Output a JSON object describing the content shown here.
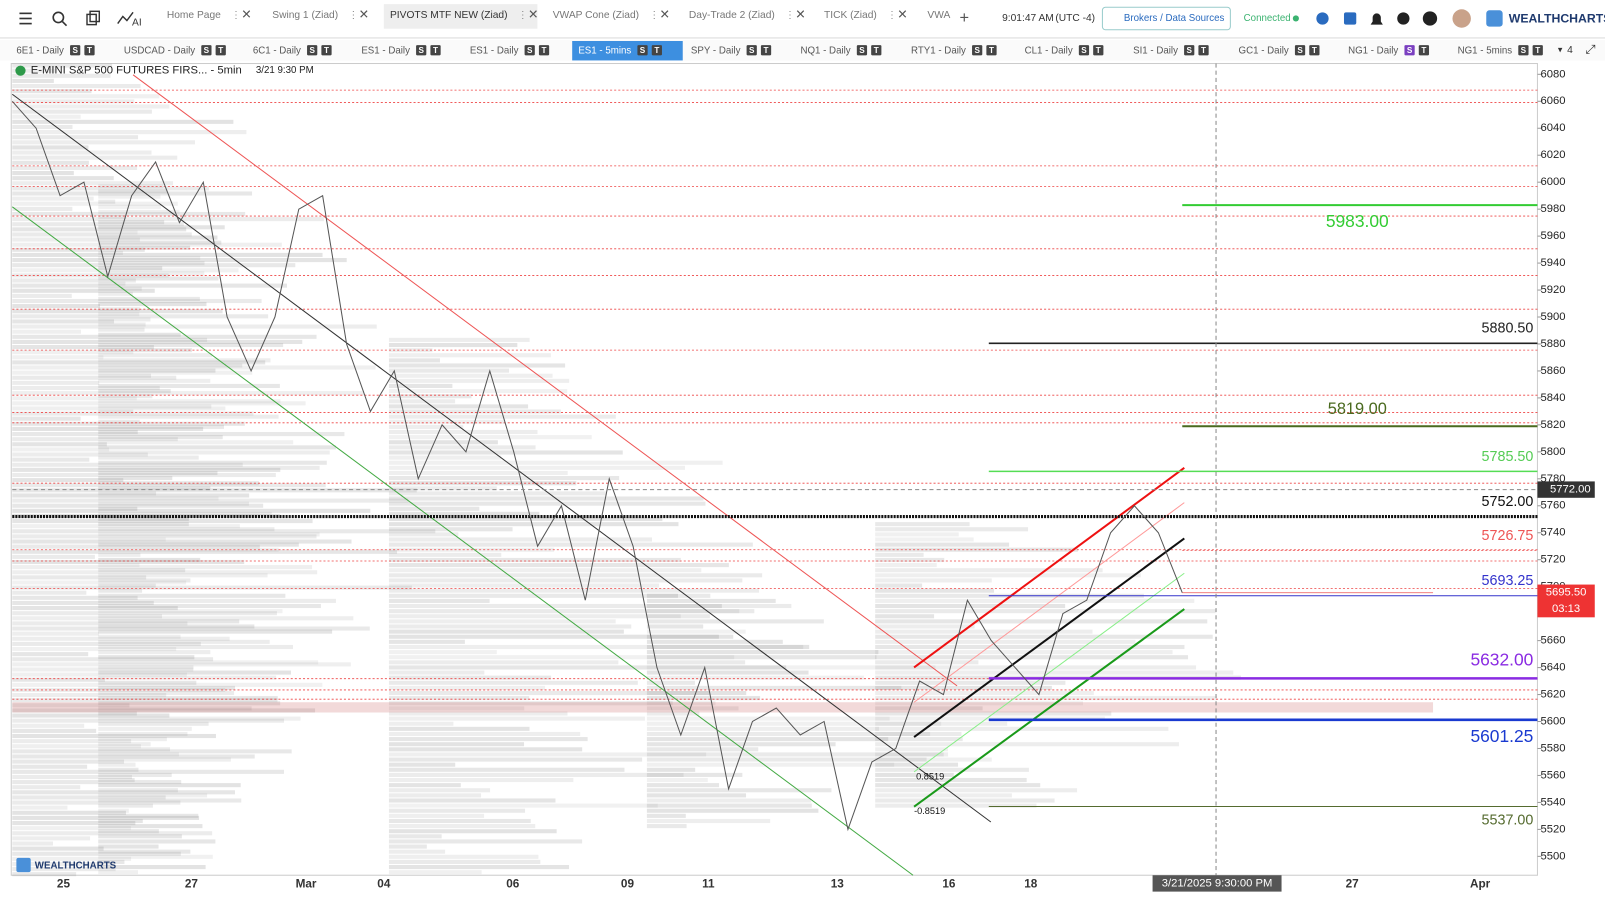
{
  "toolbar": {
    "tabs": [
      "Home Page",
      "Swing 1 (Ziad)",
      "PIVOTS MTF NEW (Ziad)",
      "VWAP Cone (Ziad)",
      "Day-Trade 2 (Ziad)",
      "TICK (Ziad)",
      "VWA"
    ],
    "active_tab": 2,
    "ai": "AI",
    "time": "9:01:47 AM",
    "timezone": "(UTC -4)",
    "brokers_button": "Brokers / Data Sources",
    "status": "Connected",
    "brand": "WEALTHCHARTS"
  },
  "symbol_tabs": {
    "items": [
      "6E1 - Daily",
      "USDCAD - Daily",
      "6C1 - Daily",
      "ES1 - Daily",
      "ES1 - Daily",
      "ES1 - 5mins",
      "SPY - Daily",
      "NQ1 - Daily",
      "RTY1 - Daily",
      "CL1 - Daily",
      "SI1 - Daily",
      "GC1 - Daily",
      "NG1 - Daily",
      "NG1 - 5mins"
    ],
    "active": 5,
    "badges": [
      "S",
      "T"
    ],
    "more": "4"
  },
  "chart": {
    "title": "E-MINI S&P 500 FUTURES FIRS... - 5min",
    "date": "3/21 9:30 PM",
    "watermark": "WEALTHCHARTS",
    "ylim": [
      5486,
      6088
    ],
    "yticks": [
      5500,
      5520,
      5540,
      5560,
      5580,
      5600,
      5620,
      5640,
      5660,
      5680,
      5700,
      5720,
      5740,
      5760,
      5780,
      5800,
      5820,
      5840,
      5860,
      5880,
      5900,
      5920,
      5940,
      5960,
      5980,
      6000,
      6020,
      6040,
      6060,
      6080
    ],
    "x_labels": [
      "25",
      "27",
      "Mar",
      "04",
      "06",
      "09",
      "11",
      "13",
      "16",
      "18",
      "27",
      "Apr"
    ],
    "crosshair_time": "3/21/2025 9:30:00 PM",
    "crosshair_price": {
      "value": 5772,
      "label": "5772.00"
    },
    "last_price": {
      "value": 5695.5,
      "label": "5695.50"
    },
    "countdown": "03:13",
    "price": [
      6060,
      6040,
      5990,
      6000,
      5930,
      5990,
      6015,
      5970,
      6000,
      5900,
      5860,
      5900,
      5980,
      5990,
      5880,
      5830,
      5860,
      5780,
      5820,
      5800,
      5860,
      5800,
      5730,
      5760,
      5690,
      5780,
      5730,
      5640,
      5590,
      5640,
      5550,
      5600,
      5610,
      5590,
      5600,
      5520,
      5570,
      5580,
      5630,
      5620,
      5690,
      5660,
      5640,
      5620,
      5680,
      5690,
      5740,
      5760,
      5740,
      5695.5
    ],
    "levels": [
      {
        "value": 5983,
        "label": "5983.00"
      },
      {
        "value": 5880.5,
        "label": "5880.50"
      },
      {
        "value": 5819,
        "label": "5819.00"
      },
      {
        "value": 5785.5,
        "label": "5785.50"
      },
      {
        "value": 5752,
        "label": "5752.00"
      },
      {
        "value": 5726.75,
        "label": "5726.75"
      },
      {
        "value": 5693.25,
        "label": "5693.25"
      },
      {
        "value": 5632,
        "label": "5632.00"
      },
      {
        "value": 5601.25,
        "label": "5601.25"
      },
      {
        "value": 5537,
        "label": "5537.00"
      }
    ],
    "fib_labels": [
      "0.8519",
      "-0.8519"
    ]
  }
}
